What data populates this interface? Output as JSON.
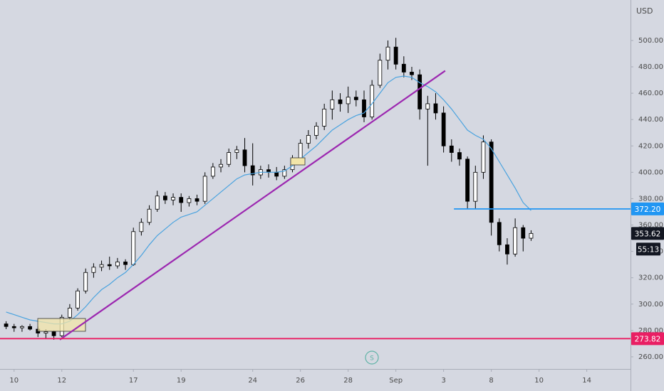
{
  "chart_data": {
    "type": "candlestick",
    "currency": "USD",
    "countdown": "55:13",
    "x": [
      0,
      1,
      2,
      3,
      4,
      5,
      6,
      7,
      8,
      9,
      10,
      11,
      12,
      13,
      14,
      15,
      16,
      17,
      18,
      19,
      20,
      21,
      22,
      23,
      24,
      25,
      26,
      27,
      28,
      29,
      30,
      31,
      32,
      33,
      34,
      35,
      36,
      37,
      38,
      39,
      40,
      41,
      42,
      43,
      44,
      45,
      46,
      47,
      48,
      49,
      50,
      51,
      52,
      53,
      54,
      55,
      56,
      57,
      58,
      59,
      60,
      61,
      62,
      63,
      64,
      65,
      66
    ],
    "open": [
      285,
      283,
      282,
      283,
      281,
      278,
      279,
      276,
      290,
      297,
      310,
      324,
      328,
      330,
      329,
      332,
      330,
      355,
      362,
      372,
      382,
      379,
      381,
      377,
      380,
      378,
      397,
      404,
      406,
      415,
      417,
      405,
      398,
      402,
      400,
      397,
      402,
      410,
      422,
      428,
      435,
      448,
      455,
      452,
      457,
      455,
      442,
      466,
      485,
      495,
      482,
      476,
      474,
      448,
      452,
      445,
      420,
      415,
      410,
      378,
      400,
      423,
      362,
      345,
      338,
      358,
      350
    ],
    "high": [
      287,
      285,
      284,
      285,
      283,
      281,
      280,
      292,
      300,
      312,
      327,
      331,
      333,
      336,
      335,
      334,
      358,
      365,
      375,
      386,
      385,
      384,
      384,
      382,
      383,
      400,
      407,
      410,
      418,
      420,
      426,
      422,
      405,
      406,
      404,
      405,
      413,
      425,
      432,
      438,
      452,
      462,
      460,
      465,
      462,
      462,
      470,
      490,
      500,
      502,
      488,
      480,
      478,
      458,
      460,
      450,
      425,
      418,
      412,
      405,
      428,
      425,
      365,
      350,
      365,
      360,
      356
    ],
    "low": [
      281,
      279,
      279,
      280,
      275,
      274,
      273,
      275,
      288,
      295,
      308,
      320,
      325,
      326,
      327,
      326,
      329,
      352,
      360,
      370,
      376,
      375,
      370,
      374,
      375,
      376,
      395,
      400,
      404,
      410,
      400,
      390,
      395,
      396,
      394,
      395,
      400,
      408,
      418,
      425,
      432,
      440,
      446,
      445,
      450,
      438,
      440,
      464,
      478,
      478,
      472,
      470,
      440,
      405,
      440,
      415,
      408,
      405,
      372,
      372,
      395,
      352,
      340,
      330,
      336,
      340,
      348
    ],
    "close": [
      283,
      282,
      283,
      281,
      278,
      279,
      276,
      290,
      297,
      310,
      324,
      328,
      330,
      329,
      332,
      330,
      355,
      362,
      372,
      382,
      379,
      381,
      377,
      380,
      378,
      397,
      404,
      406,
      415,
      417,
      405,
      398,
      402,
      400,
      397,
      402,
      410,
      422,
      428,
      435,
      448,
      455,
      452,
      457,
      455,
      442,
      466,
      485,
      495,
      482,
      476,
      474,
      448,
      452,
      445,
      420,
      415,
      410,
      378,
      400,
      423,
      362,
      345,
      338,
      358,
      350,
      353.62
    ],
    "up_color": "#ffffff",
    "down_color": "#000000",
    "ma": {
      "color": "#4aa3df",
      "values": [
        294,
        292,
        290,
        288,
        287,
        286,
        285,
        285,
        287,
        292,
        298,
        305,
        311,
        315,
        320,
        324,
        330,
        337,
        345,
        352,
        357,
        362,
        366,
        368,
        370,
        375,
        380,
        385,
        390,
        395,
        398,
        399,
        400,
        400,
        400,
        401,
        405,
        410,
        415,
        420,
        426,
        432,
        436,
        440,
        443,
        445,
        452,
        460,
        468,
        472,
        473,
        472,
        468,
        465,
        461,
        455,
        448,
        440,
        432,
        428,
        425,
        418,
        408,
        398,
        388,
        377,
        371
      ]
    },
    "trendline": {
      "color": "#9c27b0",
      "x": [
        6.75,
        55.2
      ],
      "y": [
        273,
        477
      ]
    },
    "hlines": [
      {
        "value": 372.2,
        "label": "372.20",
        "color": "#2196f3",
        "x_start": 56.3
      },
      {
        "value": 273.82,
        "color": "#e91e63"
      }
    ],
    "xlim": [
      -0.77,
      78.5
    ],
    "xticks": [
      {
        "value": 1,
        "label": "10"
      },
      {
        "value": 7,
        "label": "12"
      },
      {
        "value": 16,
        "label": "17"
      },
      {
        "value": 22,
        "label": "19"
      },
      {
        "value": 31,
        "label": "24"
      },
      {
        "value": 37,
        "label": "26"
      },
      {
        "value": 43,
        "label": "28"
      },
      {
        "value": 49,
        "label": "Sep"
      },
      {
        "value": 55,
        "label": "3"
      },
      {
        "value": 61,
        "label": "8"
      },
      {
        "value": 67,
        "label": "10"
      },
      {
        "value": 73,
        "label": "14"
      }
    ],
    "ylim": [
      250.8,
      530.7
    ],
    "yticks": [
      {
        "value": 260,
        "label": "260.00"
      },
      {
        "value": 280,
        "label": "280.00"
      },
      {
        "value": 300,
        "label": "300.00"
      },
      {
        "value": 320,
        "label": "320.00"
      },
      {
        "value": 340,
        "label": "340.00"
      },
      {
        "value": 360,
        "label": "360.00"
      },
      {
        "value": 380,
        "label": "380.00"
      },
      {
        "value": 400,
        "label": "400.00"
      },
      {
        "value": 420,
        "label": "420.00"
      },
      {
        "value": 440,
        "label": "440.00"
      },
      {
        "value": 460,
        "label": "460.00"
      },
      {
        "value": 480,
        "label": "480.00"
      },
      {
        "value": 500,
        "label": "500.00"
      }
    ]
  }
}
